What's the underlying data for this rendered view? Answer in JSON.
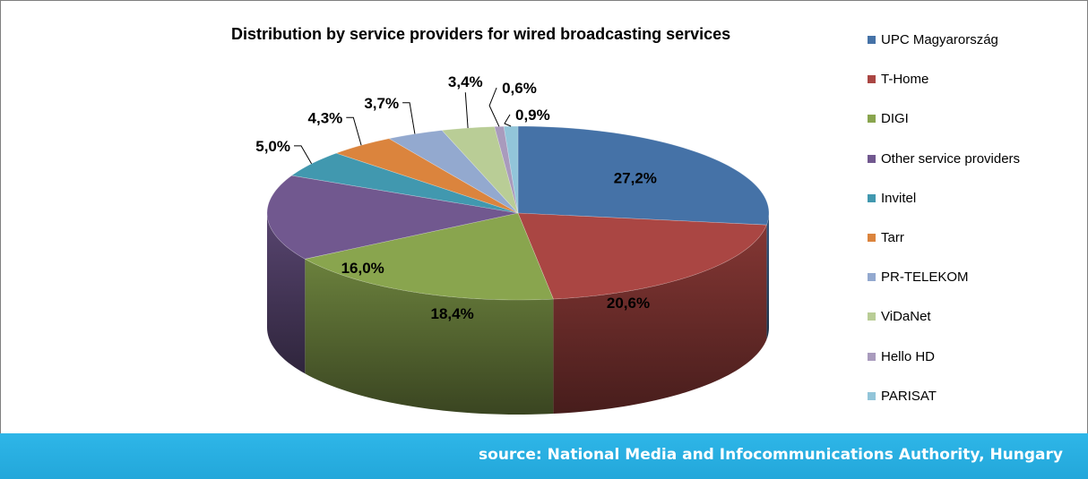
{
  "chart_data": {
    "type": "pie",
    "title": "Distribution by service providers for wired broadcasting services",
    "categories": [
      "UPC Magyarország",
      "T-Home",
      "DIGI",
      "Other service providers",
      "Invitel",
      "Tarr",
      "PR-TELEKOM",
      "ViDaNet",
      "Hello HD",
      "PARISAT"
    ],
    "values": [
      27.2,
      20.6,
      18.4,
      16.0,
      5.0,
      4.3,
      3.7,
      3.4,
      0.6,
      0.9
    ],
    "labels": [
      "27,2%",
      "20,6%",
      "18,4%",
      "16,0%",
      "5,0%",
      "4,3%",
      "3,7%",
      "3,4%",
      "0,6%",
      "0,9%"
    ],
    "colors": [
      "#4572a7",
      "#aa4643",
      "#89a54e",
      "#71588f",
      "#4198af",
      "#db843d",
      "#93a9cf",
      "#b9cd96",
      "#a99bbd",
      "#92c5d9"
    ],
    "legend_position": "right",
    "style": "3d"
  },
  "source": "source: National Media and Infocommunications Authority, Hungary"
}
